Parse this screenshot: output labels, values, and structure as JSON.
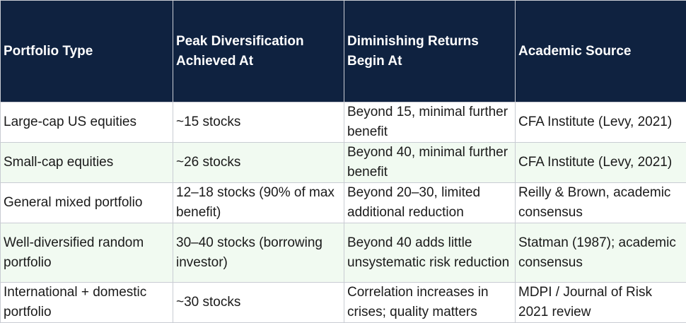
{
  "table": {
    "headers": [
      "Portfolio Type",
      "Peak Diversification Achieved At",
      "Diminishing Returns Begin At",
      "Academic Source"
    ],
    "rows": [
      [
        "Large-cap US equities",
        "~15 stocks",
        "Beyond 15, minimal further benefit",
        "CFA Institute (Levy, 2021)"
      ],
      [
        "Small-cap equities",
        "~26 stocks",
        "Beyond 40, minimal further benefit",
        "CFA Institute (Levy, 2021)"
      ],
      [
        "General mixed portfolio",
        "12–18 stocks (90% of max benefit)",
        "Beyond 20–30, limited additional reduction",
        "Reilly & Brown, academic consensus"
      ],
      [
        "Well-diversified random portfolio",
        "30–40 stocks (borrowing investor)",
        "Beyond 40 adds little unsystematic risk reduction",
        "Statman (1987); academic consensus"
      ],
      [
        "International + domestic portfolio",
        "~30 stocks",
        "Correlation increases in crises; quality matters",
        "MDPI / Journal of Risk 2021 review"
      ]
    ]
  }
}
